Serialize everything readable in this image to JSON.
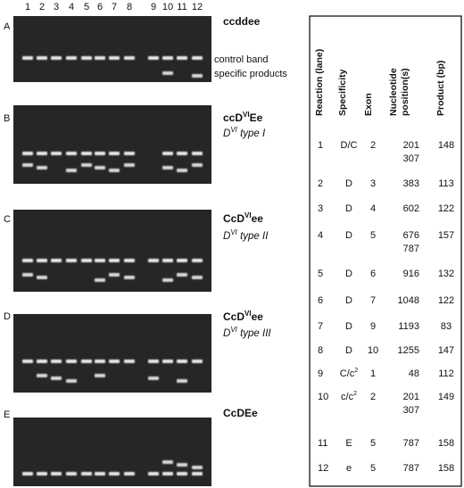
{
  "lanes": [
    "1",
    "2",
    "3",
    "4",
    "5",
    "6",
    "7",
    "8",
    "9",
    "10",
    "11",
    "12"
  ],
  "panels": [
    {
      "letter": "A",
      "genotype": [
        "ccddee"
      ],
      "subtitle": null
    },
    {
      "letter": "B",
      "genotype": [
        "ccD",
        "VI",
        "Ee"
      ],
      "subtitle": [
        "D",
        "VI",
        " type I"
      ]
    },
    {
      "letter": "C",
      "genotype": [
        "CcD",
        "VI",
        "ee"
      ],
      "subtitle": [
        "D",
        "VI",
        " type II"
      ]
    },
    {
      "letter": "D",
      "genotype": [
        "CcD",
        "VI",
        "ee"
      ],
      "subtitle": [
        "D",
        "VI",
        " type III"
      ]
    },
    {
      "letter": "E",
      "genotype": [
        "CcDEe"
      ],
      "subtitle": null
    }
  ],
  "annotations": [
    "control band",
    "specific products"
  ],
  "table": {
    "headers": [
      [
        "Reaction (lane)"
      ],
      [
        "Specificity"
      ],
      [
        "Exon"
      ],
      [
        "Nucleotide",
        "position(s)"
      ],
      [
        "Product (bp)"
      ]
    ],
    "rows": [
      [
        "1",
        [
          "D/C"
        ],
        "2",
        [
          "201",
          "307"
        ],
        "148"
      ],
      [
        "2",
        [
          "D"
        ],
        "3",
        [
          "383"
        ],
        "113"
      ],
      [
        "3",
        [
          "D"
        ],
        "4",
        [
          "602"
        ],
        "122"
      ],
      [
        "4",
        [
          "D"
        ],
        "5",
        [
          "676",
          "787"
        ],
        "157"
      ],
      [
        "5",
        [
          "D"
        ],
        "6",
        [
          "916"
        ],
        "132"
      ],
      [
        "6",
        [
          "D"
        ],
        "7",
        [
          "1048"
        ],
        "122"
      ],
      [
        "7",
        [
          "D"
        ],
        "9",
        [
          "1193"
        ],
        "83"
      ],
      [
        "8",
        [
          "D"
        ],
        "10",
        [
          "1255"
        ],
        "147"
      ],
      [
        "9",
        [
          "C/c",
          "2"
        ],
        "1",
        [
          "48"
        ],
        "112"
      ],
      [
        "10",
        [
          "c/c",
          "2"
        ],
        "2",
        [
          "201",
          "307"
        ],
        "149"
      ],
      [
        "11",
        [
          "E"
        ],
        "5",
        [
          "787"
        ],
        "158"
      ],
      [
        "12",
        [
          "e"
        ],
        "5",
        [
          "787"
        ],
        "158"
      ]
    ]
  }
}
